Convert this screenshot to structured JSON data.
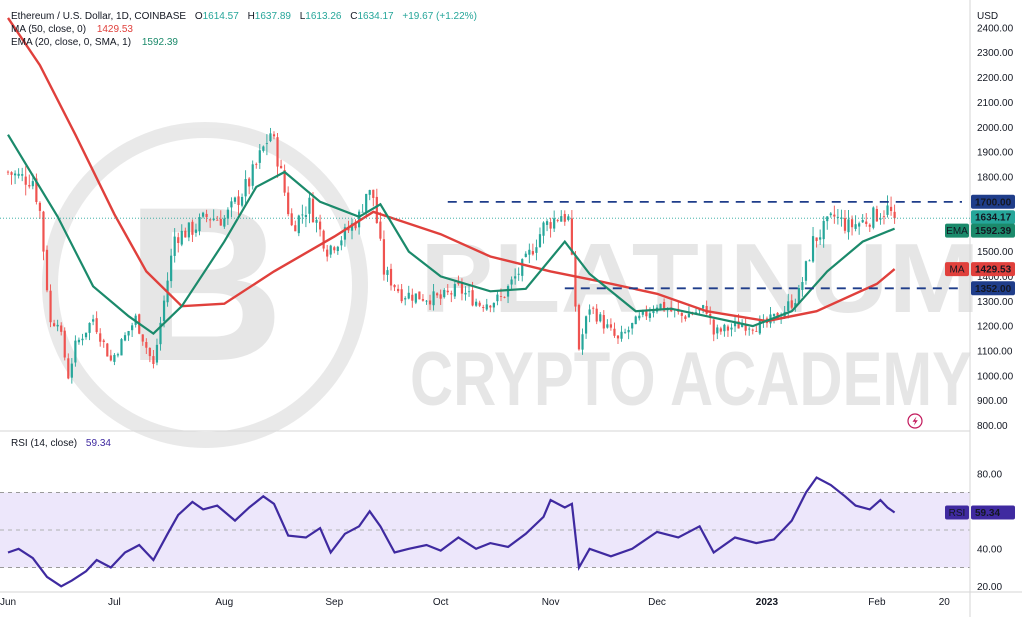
{
  "chart_data": [
    {
      "type": "candlestick",
      "title": "Ethereum / U.S. Dollar, 1D, COINBASE",
      "ohlc_summary": {
        "open_label": "O",
        "open": "1614.57",
        "high_label": "H",
        "high": "1637.89",
        "low_label": "L",
        "low": "1613.26",
        "close_label": "C",
        "close": "1634.17",
        "change": "+19.67 (+1.22%)"
      },
      "currency_label": "USD",
      "y_ticks": [
        "2400.00",
        "2300.00",
        "2200.00",
        "2100.00",
        "2000.00",
        "1900.00",
        "1800.00",
        "1700.00",
        "1600.00",
        "1500.00",
        "1400.00",
        "1300.00",
        "1200.00",
        "1100.00",
        "1000.00",
        "900.00",
        "800.00"
      ],
      "y_tick_values": [
        2400,
        2300,
        2200,
        2100,
        2000,
        1900,
        1800,
        1700,
        1600,
        1500,
        1400,
        1300,
        1200,
        1100,
        1000,
        900,
        800
      ],
      "ylim": [
        790,
        2480
      ],
      "x_ticks": [
        "Jun",
        "Jul",
        "Aug",
        "Sep",
        "Oct",
        "Nov",
        "Dec",
        "2023",
        "Feb",
        "20"
      ],
      "x_tick_dates": [
        "2022-06-01",
        "2022-07-01",
        "2022-08-01",
        "2022-09-01",
        "2022-10-01",
        "2022-11-01",
        "2022-12-01",
        "2023-01-01",
        "2023-02-01",
        "2023-02-20"
      ],
      "x_range": [
        "2022-06-01",
        "2023-02-25"
      ],
      "candle_dates": [
        "2022-06-01",
        "2023-02-06"
      ],
      "close_anchors": [
        [
          "2022-06-01",
          1820
        ],
        [
          "2022-06-04",
          1800
        ],
        [
          "2022-06-08",
          1790
        ],
        [
          "2022-06-10",
          1660
        ],
        [
          "2022-06-13",
          1210
        ],
        [
          "2022-06-15",
          1230
        ],
        [
          "2022-06-18",
          1000
        ],
        [
          "2022-06-20",
          1120
        ],
        [
          "2022-06-25",
          1230
        ],
        [
          "2022-06-30",
          1060
        ],
        [
          "2022-07-07",
          1230
        ],
        [
          "2022-07-12",
          1040
        ],
        [
          "2022-07-18",
          1560
        ],
        [
          "2022-07-23",
          1590
        ],
        [
          "2022-07-27",
          1640
        ],
        [
          "2022-08-01",
          1630
        ],
        [
          "2022-08-08",
          1780
        ],
        [
          "2022-08-14",
          1980
        ],
        [
          "2022-08-16",
          1880
        ],
        [
          "2022-08-20",
          1600
        ],
        [
          "2022-08-25",
          1690
        ],
        [
          "2022-08-30",
          1510
        ],
        [
          "2022-09-04",
          1570
        ],
        [
          "2022-09-08",
          1640
        ],
        [
          "2022-09-10",
          1740
        ],
        [
          "2022-09-12",
          1720
        ],
        [
          "2022-09-15",
          1420
        ],
        [
          "2022-09-20",
          1330
        ],
        [
          "2022-09-25",
          1320
        ],
        [
          "2022-10-01",
          1310
        ],
        [
          "2022-10-06",
          1350
        ],
        [
          "2022-10-12",
          1290
        ],
        [
          "2022-10-18",
          1310
        ],
        [
          "2022-10-25",
          1460
        ],
        [
          "2022-10-30",
          1600
        ],
        [
          "2022-11-04",
          1650
        ],
        [
          "2022-11-06",
          1630
        ],
        [
          "2022-11-09",
          1110
        ],
        [
          "2022-11-12",
          1280
        ],
        [
          "2022-11-20",
          1140
        ],
        [
          "2022-11-24",
          1200
        ],
        [
          "2022-12-01",
          1290
        ],
        [
          "2022-12-08",
          1240
        ],
        [
          "2022-12-15",
          1270
        ],
        [
          "2022-12-17",
          1170
        ],
        [
          "2022-12-25",
          1210
        ],
        [
          "2022-12-31",
          1200
        ],
        [
          "2023-01-05",
          1250
        ],
        [
          "2023-01-10",
          1330
        ],
        [
          "2023-01-14",
          1540
        ],
        [
          "2023-01-20",
          1640
        ],
        [
          "2023-01-24",
          1600
        ],
        [
          "2023-01-28",
          1620
        ],
        [
          "2023-02-01",
          1650
        ],
        [
          "2023-02-04",
          1670
        ],
        [
          "2023-02-06",
          1634.17
        ]
      ],
      "ma50": {
        "label": "MA (50, close, 0)",
        "value": "1429.53",
        "color": "#e0403c",
        "tag": "MA",
        "points": [
          [
            "2022-06-01",
            2440
          ],
          [
            "2022-06-10",
            2250
          ],
          [
            "2022-06-20",
            1970
          ],
          [
            "2022-07-01",
            1650
          ],
          [
            "2022-07-10",
            1420
          ],
          [
            "2022-07-20",
            1280
          ],
          [
            "2022-08-01",
            1290
          ],
          [
            "2022-08-15",
            1420
          ],
          [
            "2022-09-01",
            1560
          ],
          [
            "2022-09-12",
            1660
          ],
          [
            "2022-10-01",
            1570
          ],
          [
            "2022-10-15",
            1480
          ],
          [
            "2022-11-01",
            1420
          ],
          [
            "2022-11-15",
            1380
          ],
          [
            "2022-12-01",
            1330
          ],
          [
            "2022-12-15",
            1260
          ],
          [
            "2023-01-01",
            1220
          ],
          [
            "2023-01-15",
            1260
          ],
          [
            "2023-02-01",
            1370
          ],
          [
            "2023-02-06",
            1429.53
          ]
        ]
      },
      "ema20": {
        "label": "EMA (20, close, 0, SMA, 1)",
        "value": "1592.39",
        "color": "#1b8a6b",
        "tag": "EMA",
        "points": [
          [
            "2022-06-01",
            1970
          ],
          [
            "2022-06-15",
            1640
          ],
          [
            "2022-06-25",
            1360
          ],
          [
            "2022-07-05",
            1240
          ],
          [
            "2022-07-12",
            1170
          ],
          [
            "2022-07-20",
            1280
          ],
          [
            "2022-08-01",
            1540
          ],
          [
            "2022-08-10",
            1760
          ],
          [
            "2022-08-18",
            1820
          ],
          [
            "2022-08-28",
            1700
          ],
          [
            "2022-09-08",
            1640
          ],
          [
            "2022-09-14",
            1690
          ],
          [
            "2022-09-22",
            1500
          ],
          [
            "2022-10-01",
            1400
          ],
          [
            "2022-10-15",
            1340
          ],
          [
            "2022-10-25",
            1350
          ],
          [
            "2022-11-05",
            1540
          ],
          [
            "2022-11-12",
            1410
          ],
          [
            "2022-11-25",
            1260
          ],
          [
            "2022-12-05",
            1270
          ],
          [
            "2022-12-15",
            1240
          ],
          [
            "2022-12-28",
            1200
          ],
          [
            "2023-01-08",
            1260
          ],
          [
            "2023-01-18",
            1420
          ],
          [
            "2023-01-28",
            1540
          ],
          [
            "2023-02-06",
            1592.39
          ]
        ]
      },
      "horizontal_levels": [
        {
          "value": 1700,
          "label": "1700.00"
        },
        {
          "value": 1352,
          "label": "1352.00"
        }
      ],
      "last_price": {
        "value": 1634.17,
        "label": "1634.17"
      },
      "colors": {
        "up": "#26a69a",
        "down": "#ef5350",
        "level_line": "#1f3d8a",
        "level_tag": "#1f3d8a",
        "price_tag": "#26a69a"
      },
      "watermark": [
        "PLATINUM",
        "CRYPTO ACADEMY"
      ],
      "watermark_logo_letter": "B"
    },
    {
      "type": "line",
      "title": "RSI (14, close)",
      "value": "59.34",
      "tag": "RSI",
      "y_ticks": [
        "80.00",
        "40.00",
        "20.00"
      ],
      "y_tick_values": [
        80,
        40,
        20
      ],
      "ylim": [
        18,
        90
      ],
      "band": [
        30,
        70
      ],
      "midline": 50,
      "color": "#3f2aa0",
      "band_color": "#ede7fb",
      "points": [
        [
          "2022-06-01",
          38
        ],
        [
          "2022-06-04",
          40
        ],
        [
          "2022-06-08",
          35
        ],
        [
          "2022-06-12",
          25
        ],
        [
          "2022-06-16",
          20
        ],
        [
          "2022-06-19",
          23
        ],
        [
          "2022-06-23",
          28
        ],
        [
          "2022-06-26",
          34
        ],
        [
          "2022-06-30",
          30
        ],
        [
          "2022-07-04",
          38
        ],
        [
          "2022-07-08",
          42
        ],
        [
          "2022-07-12",
          34
        ],
        [
          "2022-07-16",
          48
        ],
        [
          "2022-07-19",
          58
        ],
        [
          "2022-07-23",
          65
        ],
        [
          "2022-07-26",
          61
        ],
        [
          "2022-07-30",
          63
        ],
        [
          "2022-08-04",
          55
        ],
        [
          "2022-08-08",
          62
        ],
        [
          "2022-08-12",
          68
        ],
        [
          "2022-08-15",
          64
        ],
        [
          "2022-08-19",
          47
        ],
        [
          "2022-08-24",
          46
        ],
        [
          "2022-08-28",
          51
        ],
        [
          "2022-08-31",
          38
        ],
        [
          "2022-09-04",
          48
        ],
        [
          "2022-09-08",
          52
        ],
        [
          "2022-09-11",
          60
        ],
        [
          "2022-09-14",
          52
        ],
        [
          "2022-09-18",
          38
        ],
        [
          "2022-09-22",
          40
        ],
        [
          "2022-09-27",
          42
        ],
        [
          "2022-10-01",
          39
        ],
        [
          "2022-10-06",
          46
        ],
        [
          "2022-10-11",
          40
        ],
        [
          "2022-10-15",
          43
        ],
        [
          "2022-10-20",
          41
        ],
        [
          "2022-10-25",
          48
        ],
        [
          "2022-10-30",
          57
        ],
        [
          "2022-11-01",
          66
        ],
        [
          "2022-11-05",
          62
        ],
        [
          "2022-11-07",
          64
        ],
        [
          "2022-11-09",
          30
        ],
        [
          "2022-11-12",
          40
        ],
        [
          "2022-11-18",
          36
        ],
        [
          "2022-11-24",
          40
        ],
        [
          "2022-12-01",
          49
        ],
        [
          "2022-12-07",
          46
        ],
        [
          "2022-12-13",
          52
        ],
        [
          "2022-12-17",
          38
        ],
        [
          "2022-12-23",
          46
        ],
        [
          "2022-12-29",
          43
        ],
        [
          "2023-01-03",
          45
        ],
        [
          "2023-01-08",
          55
        ],
        [
          "2023-01-12",
          70
        ],
        [
          "2023-01-15",
          78
        ],
        [
          "2023-01-19",
          74
        ],
        [
          "2023-01-23",
          68
        ],
        [
          "2023-01-26",
          63
        ],
        [
          "2023-01-30",
          61
        ],
        [
          "2023-02-02",
          66
        ],
        [
          "2023-02-04",
          62
        ],
        [
          "2023-02-06",
          59.34
        ]
      ]
    }
  ]
}
